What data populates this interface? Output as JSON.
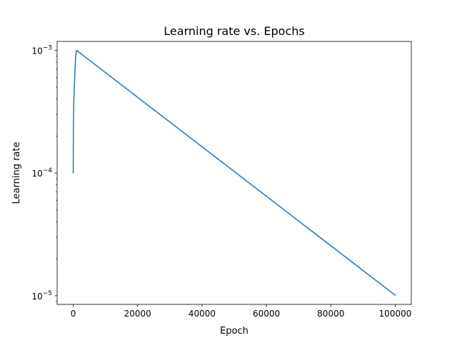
{
  "chart_data": {
    "type": "line",
    "title": "Learning rate vs. Epochs",
    "xlabel": "Epoch",
    "ylabel": "Learning rate",
    "xlim": [
      -5000,
      105000
    ],
    "ylim": [
      8.5e-06,
      0.00118
    ],
    "yscale": "log",
    "grid": false,
    "xticks": [
      {
        "value": 0,
        "label": "0"
      },
      {
        "value": 20000,
        "label": "20000"
      },
      {
        "value": 40000,
        "label": "40000"
      },
      {
        "value": 60000,
        "label": "60000"
      },
      {
        "value": 80000,
        "label": "80000"
      },
      {
        "value": 100000,
        "label": "100000"
      }
    ],
    "yticks": [
      {
        "value": 1e-05,
        "base": "10",
        "exp": "−5"
      },
      {
        "value": 0.0001,
        "base": "10",
        "exp": "−4"
      },
      {
        "value": 0.001,
        "base": "10",
        "exp": "−3"
      }
    ],
    "series": [
      {
        "color": "#1f77b4",
        "x": [
          0,
          50,
          100,
          200,
          300,
          400,
          500,
          600,
          700,
          800,
          1000,
          100000
        ],
        "y": [
          0.0001,
          0.00022,
          0.0003,
          0.0004,
          0.00046,
          0.00055,
          0.00064,
          0.00073,
          0.00082,
          0.00091,
          0.001,
          1.01e-05
        ]
      }
    ]
  }
}
